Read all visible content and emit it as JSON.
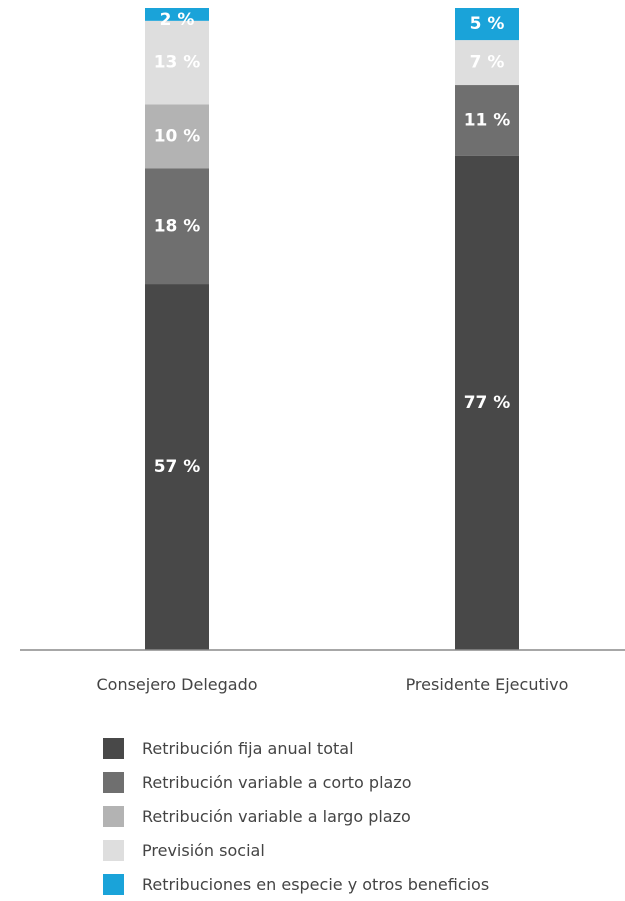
{
  "chart_data": {
    "type": "bar",
    "stacked": true,
    "categories": [
      "Consejero Delegado",
      "Presidente Ejecutivo"
    ],
    "ylim": [
      0,
      100
    ],
    "grid": false,
    "legend_position": "bottom",
    "series": [
      {
        "name": "Retribución fija anual total",
        "color": "#484848",
        "values": [
          57,
          77
        ],
        "labels": [
          "57 %",
          "77 %"
        ]
      },
      {
        "name": "Retribución variable a corto plazo",
        "color": "#6f6f6f",
        "values": [
          18,
          11
        ],
        "labels": [
          "18 %",
          "11 %"
        ]
      },
      {
        "name": "Retribución variable a largo plazo",
        "color": "#b3b3b3",
        "values": [
          10,
          0
        ],
        "labels": [
          "10 %",
          ""
        ]
      },
      {
        "name": "Previsión social",
        "color": "#dedede",
        "values": [
          13,
          7
        ],
        "labels": [
          "13 %",
          "7 %"
        ]
      },
      {
        "name": "Retribuciones en especie y otros beneficios",
        "color": "#1aa3d9",
        "values": [
          2,
          5
        ],
        "labels": [
          "2 %",
          "5 %"
        ]
      }
    ]
  }
}
